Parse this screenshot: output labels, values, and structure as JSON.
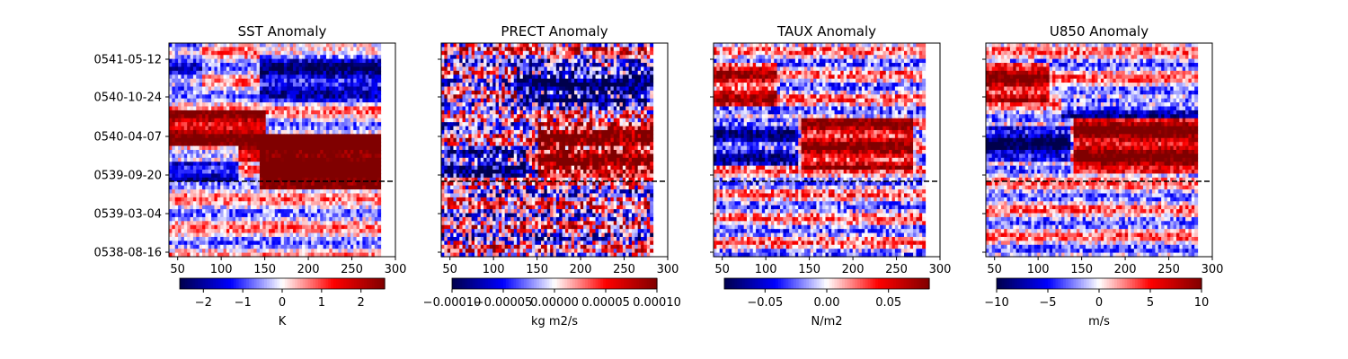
{
  "chart_data": [
    {
      "type": "heatmap",
      "title": "SST Anomaly",
      "x_ticks": [
        50,
        100,
        150,
        200,
        250,
        300
      ],
      "xlim": [
        40,
        300
      ],
      "y_tick_labels": [
        "0541-05-12",
        "0540-10-24",
        "0540-04-07",
        "0539-09-20",
        "0539-03-04",
        "0538-08-16"
      ],
      "reference_line_date": "0539-08",
      "colormap": "seismic",
      "colorbar": {
        "ticks": [
          -2,
          -1,
          0,
          1,
          2
        ],
        "tick_labels": [
          "−2",
          "−1",
          "0",
          "1",
          "2"
        ],
        "range": [
          -2.6,
          2.6
        ],
        "label": "K"
      }
    },
    {
      "type": "heatmap",
      "title": "PRECT Anomaly",
      "x_ticks": [
        50,
        100,
        150,
        200,
        250,
        300
      ],
      "xlim": [
        40,
        300
      ],
      "y_tick_labels": [
        "0541-05-12",
        "0540-10-24",
        "0540-04-07",
        "0539-09-20",
        "0539-03-04",
        "0538-08-16"
      ],
      "reference_line_date": "0539-08",
      "colormap": "seismic",
      "colorbar": {
        "ticks": [
          -0.0001,
          -5e-05,
          0,
          5e-05,
          0.0001
        ],
        "tick_labels": [
          "−0.00010",
          "−0.00005",
          "0.00000",
          "0.00005",
          "0.00010"
        ],
        "range": [
          -0.0001,
          0.0001
        ],
        "label": "kg m2/s"
      }
    },
    {
      "type": "heatmap",
      "title": "TAUX Anomaly",
      "x_ticks": [
        50,
        100,
        150,
        200,
        250,
        300
      ],
      "xlim": [
        40,
        300
      ],
      "y_tick_labels": [
        "0541-05-12",
        "0540-10-24",
        "0540-04-07",
        "0539-09-20",
        "0539-03-04",
        "0538-08-16"
      ],
      "reference_line_date": "0539-08",
      "colormap": "seismic",
      "colorbar": {
        "ticks": [
          -0.05,
          0,
          0.05
        ],
        "tick_labels": [
          "−0.05",
          "0.00",
          "0.05"
        ],
        "range": [
          -0.083,
          0.083
        ],
        "label": "N/m2"
      }
    },
    {
      "type": "heatmap",
      "title": "U850 Anomaly",
      "x_ticks": [
        50,
        100,
        150,
        200,
        250,
        300
      ],
      "xlim": [
        40,
        300
      ],
      "y_tick_labels": [
        "0541-05-12",
        "0540-10-24",
        "0540-04-07",
        "0539-09-20",
        "0539-03-04",
        "0538-08-16"
      ],
      "reference_line_date": "0539-08",
      "colormap": "seismic",
      "colorbar": {
        "ticks": [
          -10,
          -5,
          0,
          5,
          10
        ],
        "tick_labels": [
          "−10",
          "−5",
          "0",
          "5",
          "10"
        ],
        "range": [
          -10,
          10
        ],
        "label": "m/s"
      }
    }
  ]
}
